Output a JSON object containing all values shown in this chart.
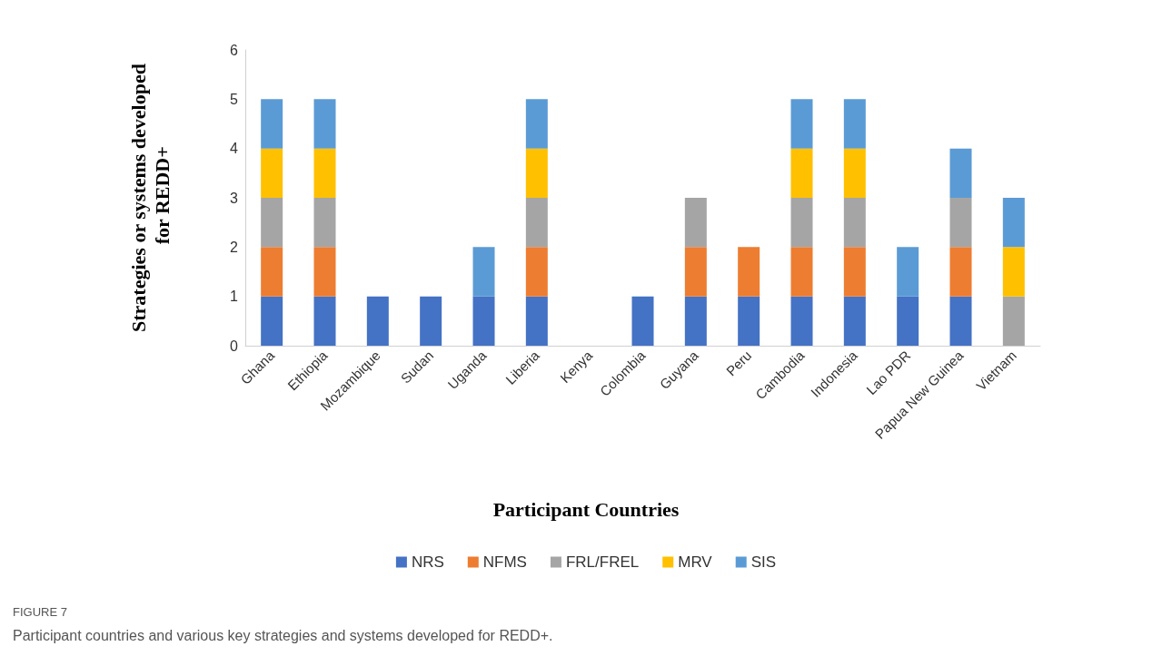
{
  "chart_data": {
    "type": "bar",
    "stacked": true,
    "xlabel": "Participant Countries",
    "ylabel": "Strategies or systems developed for REDD+",
    "categories": [
      "Ghana",
      "Ethiopia",
      "Mozambique",
      "Sudan",
      "Uganda",
      "Liberia",
      "Kenya",
      "Colombia",
      "Guyana",
      "Peru",
      "Cambodia",
      "Indonesia",
      "Lao PDR",
      "Papua New Guinea",
      "Vietnam"
    ],
    "series": [
      {
        "name": "NRS",
        "color": "#4472c4",
        "values": [
          1,
          1,
          1,
          1,
          1,
          1,
          0,
          1,
          1,
          1,
          1,
          1,
          1,
          1,
          0
        ]
      },
      {
        "name": "NFMS",
        "color": "#ed7d31",
        "values": [
          1,
          1,
          0,
          0,
          0,
          1,
          0,
          0,
          1,
          1,
          1,
          1,
          0,
          1,
          0
        ]
      },
      {
        "name": "FRL/FREL",
        "color": "#a5a5a5",
        "values": [
          1,
          1,
          0,
          0,
          0,
          1,
          0,
          0,
          1,
          0,
          1,
          1,
          0,
          1,
          1
        ]
      },
      {
        "name": "MRV",
        "color": "#ffc000",
        "values": [
          1,
          1,
          0,
          0,
          0,
          1,
          0,
          0,
          0,
          0,
          1,
          1,
          0,
          0,
          1
        ]
      },
      {
        "name": "SIS",
        "color": "#5b9bd5",
        "values": [
          1,
          1,
          0,
          0,
          1,
          1,
          0,
          0,
          0,
          0,
          1,
          1,
          1,
          1,
          1
        ]
      }
    ],
    "ylim": [
      0,
      6
    ],
    "yticks": [
      0,
      1,
      2,
      3,
      4,
      5,
      6
    ],
    "grid": false,
    "legend": "bottom",
    "annotations": [
      "FIGURE 7",
      "Participant countries and various key strategies and systems developed for REDD+."
    ]
  }
}
